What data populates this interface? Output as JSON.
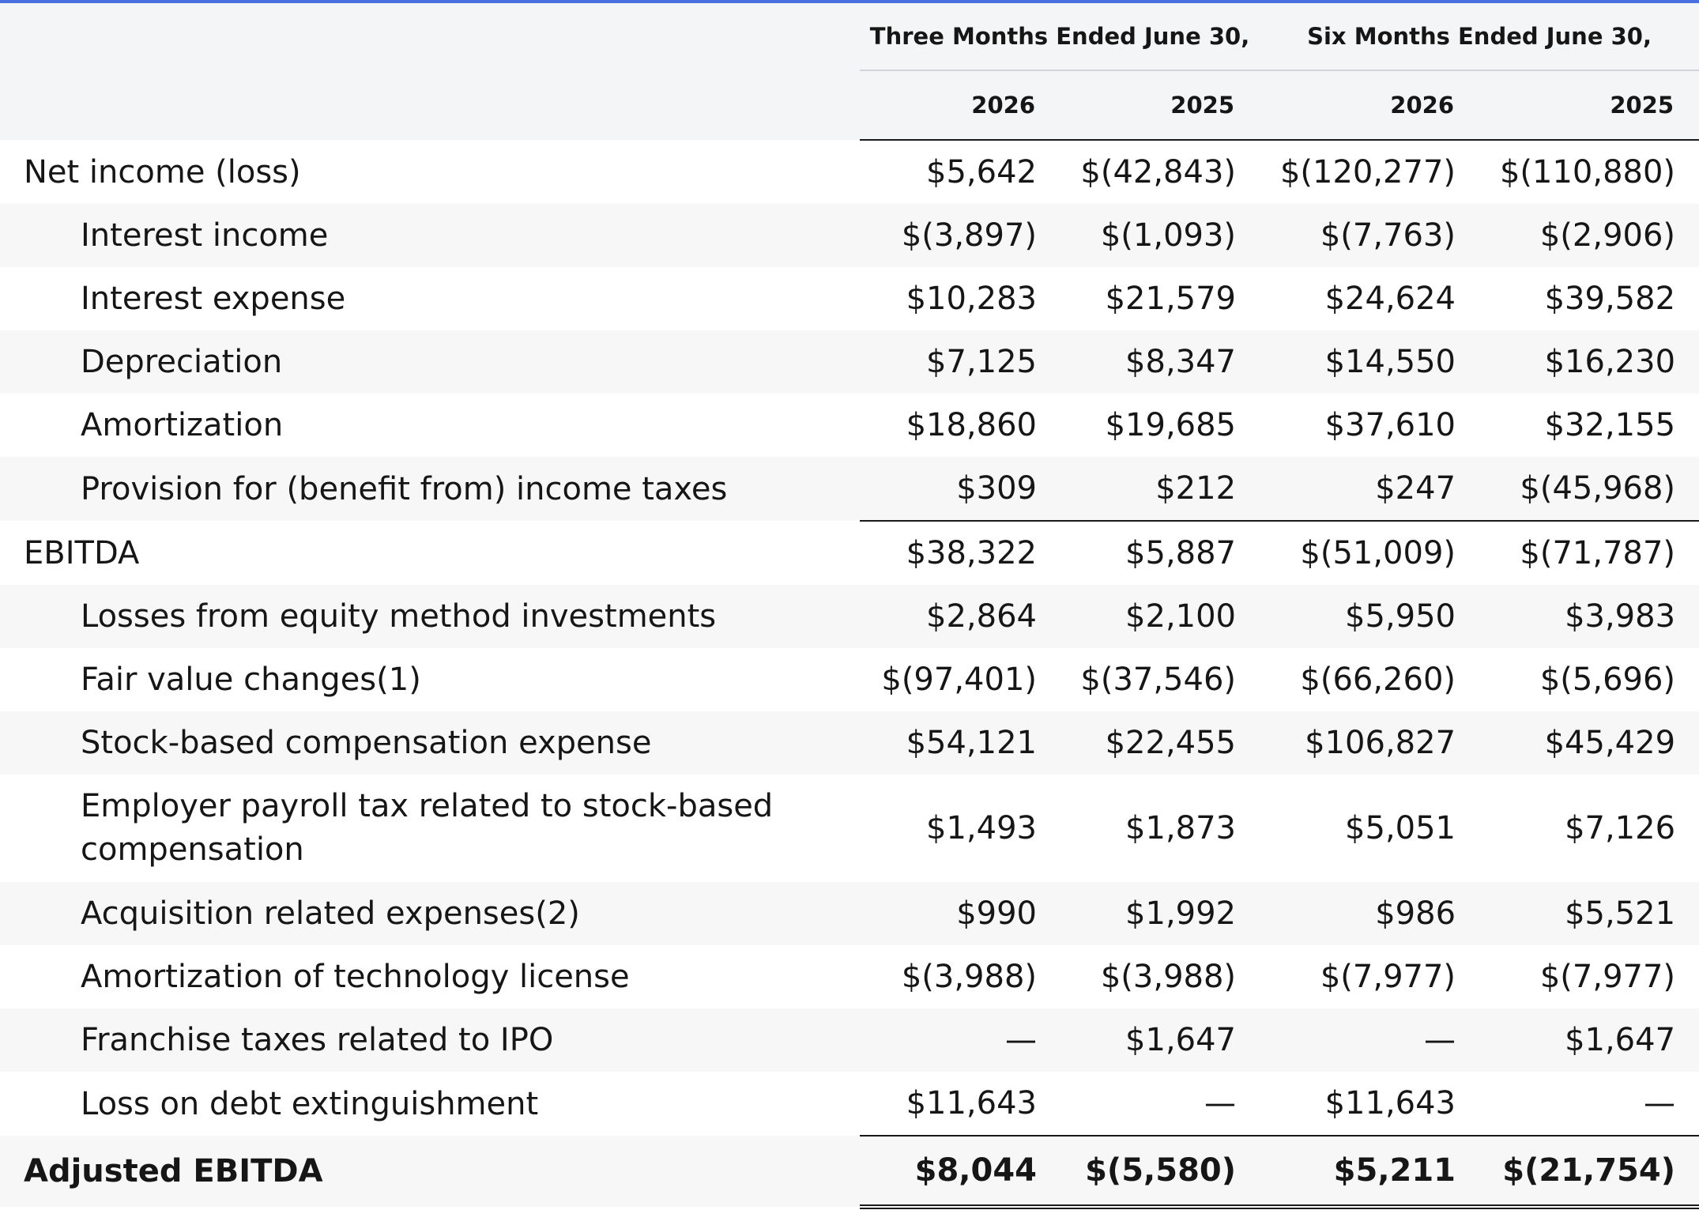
{
  "header": {
    "group_three_months": "Three Months Ended June 30,",
    "group_six_months": "Six Months Ended June 30,",
    "years": [
      "2026",
      "2025",
      "2026",
      "2025"
    ]
  },
  "rows": [
    {
      "label": "Net income (loss)",
      "values": [
        "$5,642",
        "$(42,843)",
        "$(120,277)",
        "$(110,880)"
      ]
    },
    {
      "label": "Interest income",
      "values": [
        "$(3,897)",
        "$(1,093)",
        "$(7,763)",
        "$(2,906)"
      ]
    },
    {
      "label": "Interest expense",
      "values": [
        "$10,283",
        "$21,579",
        "$24,624",
        "$39,582"
      ]
    },
    {
      "label": "Depreciation",
      "values": [
        "$7,125",
        "$8,347",
        "$14,550",
        "$16,230"
      ]
    },
    {
      "label": "Amortization",
      "values": [
        "$18,860",
        "$19,685",
        "$37,610",
        "$32,155"
      ]
    },
    {
      "label": "Provision for (benefit from) income taxes",
      "values": [
        "$309",
        "$212",
        "$247",
        "$(45,968)"
      ]
    },
    {
      "label": "EBITDA",
      "values": [
        "$38,322",
        "$5,887",
        "$(51,009)",
        "$(71,787)"
      ]
    },
    {
      "label": "Losses from equity method investments",
      "values": [
        "$2,864",
        "$2,100",
        "$5,950",
        "$3,983"
      ]
    },
    {
      "label": "Fair value changes(1)",
      "values": [
        "$(97,401)",
        "$(37,546)",
        "$(66,260)",
        "$(5,696)"
      ]
    },
    {
      "label": "Stock-based compensation expense",
      "values": [
        "$54,121",
        "$22,455",
        "$106,827",
        "$45,429"
      ]
    },
    {
      "label": "Employer payroll tax related to stock-based compensation",
      "values": [
        "$1,493",
        "$1,873",
        "$5,051",
        "$7,126"
      ]
    },
    {
      "label": "Acquisition related expenses(2)",
      "values": [
        "$990",
        "$1,992",
        "$986",
        "$5,521"
      ]
    },
    {
      "label": "Amortization of technology license",
      "values": [
        "$(3,988)",
        "$(3,988)",
        "$(7,977)",
        "$(7,977)"
      ]
    },
    {
      "label": "Franchise taxes related to IPO",
      "values": [
        "—",
        "$1,647",
        "—",
        "$1,647"
      ]
    },
    {
      "label": "Loss on debt extinguishment",
      "values": [
        "$11,643",
        "—",
        "$11,643",
        "—"
      ]
    },
    {
      "label": "Adjusted EBITDA",
      "values": [
        "$8,044",
        "$(5,580)",
        "$5,211",
        "$(21,754)"
      ]
    }
  ]
}
